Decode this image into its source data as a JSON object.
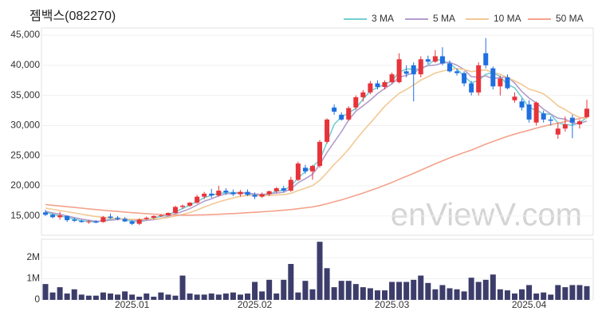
{
  "chart_data": {
    "type": "candlestick",
    "title": "젬백스(082270)",
    "watermark": "enViewV.com",
    "up_color": "#e8333a",
    "down_color": "#1f6fe0",
    "grid": true,
    "categories": [
      null,
      null,
      null,
      null,
      null,
      null,
      null,
      null,
      null,
      null,
      null,
      null,
      "2025.01",
      null,
      null,
      null,
      null,
      null,
      null,
      null,
      null,
      null,
      null,
      null,
      null,
      null,
      null,
      null,
      null,
      "2025.02",
      null,
      null,
      null,
      null,
      null,
      null,
      null,
      null,
      null,
      null,
      null,
      null,
      null,
      null,
      null,
      null,
      null,
      null,
      "2025.03",
      null,
      null,
      null,
      null,
      null,
      null,
      null,
      null,
      null,
      null,
      null,
      null,
      null,
      null,
      null,
      null,
      null,
      null,
      "2025.04",
      null,
      null,
      null,
      null,
      null,
      null,
      null,
      null
    ],
    "open": [
      15600,
      15200,
      14800,
      15000,
      14400,
      14200,
      14000,
      14100,
      14000,
      14900,
      14700,
      14500,
      14100,
      13700,
      14500,
      14700,
      15000,
      15100,
      15500,
      16500,
      16700,
      17200,
      18200,
      18700,
      18400,
      19200,
      18900,
      18600,
      19000,
      18500,
      18200,
      18600,
      19100,
      19600,
      19200,
      21000,
      23000,
      22400,
      23300,
      27300,
      33000,
      31800,
      31000,
      33000,
      34700,
      35500,
      37000,
      36400,
      37200,
      37200,
      39000,
      40000,
      38500,
      41000,
      40600,
      41500,
      40300,
      39000,
      38700,
      37000,
      35500,
      42000,
      39500,
      36500,
      38000,
      34200,
      34000,
      33500,
      30500,
      32000,
      31000,
      28500,
      29500,
      31300,
      30200,
      31400
    ],
    "high": [
      16000,
      15400,
      15700,
      15100,
      14700,
      14400,
      14300,
      14300,
      15000,
      15400,
      15000,
      14800,
      14300,
      14600,
      14900,
      15100,
      15300,
      15600,
      16700,
      16900,
      17300,
      18500,
      19000,
      19500,
      20000,
      19600,
      19400,
      19300,
      19400,
      18900,
      18900,
      19200,
      19800,
      20000,
      21500,
      24000,
      23500,
      23500,
      27600,
      31200,
      33500,
      32200,
      33200,
      35000,
      35900,
      37400,
      37500,
      37500,
      38800,
      42000,
      40000,
      40500,
      41500,
      41600,
      42500,
      43000,
      40800,
      39500,
      39000,
      37400,
      40500,
      44500,
      39800,
      38300,
      38500,
      35500,
      34500,
      34200,
      34000,
      32500,
      31500,
      30500,
      31500,
      31800,
      31000,
      34300
    ],
    "low": [
      15000,
      14600,
      14400,
      14000,
      14000,
      13900,
      13700,
      13800,
      13900,
      14500,
      14300,
      14000,
      13500,
      13500,
      14300,
      14500,
      14800,
      15000,
      15400,
      16200,
      16500,
      17000,
      17800,
      18000,
      18200,
      18500,
      18300,
      18200,
      18300,
      17800,
      18000,
      18300,
      18800,
      18900,
      19000,
      20800,
      22000,
      21000,
      23000,
      27000,
      31800,
      30800,
      30800,
      32600,
      34000,
      35200,
      36000,
      36000,
      37000,
      37000,
      38000,
      34000,
      38000,
      40200,
      40400,
      40000,
      38800,
      38300,
      36500,
      35000,
      35000,
      39500,
      36000,
      35000,
      36000,
      33800,
      32500,
      30500,
      30000,
      30500,
      30000,
      27800,
      29000,
      27900,
      29500,
      31200
    ],
    "close": [
      15200,
      14800,
      15100,
      14300,
      14200,
      14000,
      14100,
      13900,
      14800,
      14700,
      14500,
      14100,
      13700,
      14400,
      14700,
      15000,
      15100,
      15500,
      16500,
      16700,
      17200,
      18200,
      18700,
      18400,
      19200,
      18900,
      18600,
      19000,
      18500,
      18200,
      18600,
      19100,
      19600,
      19200,
      21000,
      23700,
      22400,
      23300,
      27300,
      31000,
      32300,
      31000,
      32900,
      34700,
      35500,
      37000,
      36400,
      37200,
      38500,
      41000,
      38600,
      38500,
      41000,
      40600,
      41500,
      40300,
      39000,
      38700,
      37000,
      35500,
      40000,
      40000,
      36500,
      37800,
      36200,
      34800,
      33000,
      31000,
      33800,
      31000,
      30800,
      29500,
      30200,
      30500,
      30700,
      32800
    ],
    "ylim": [
      11800,
      46200
    ],
    "yticks": [
      {
        "value": 15000,
        "label": "15,000"
      },
      {
        "value": 20000,
        "label": "20,000"
      },
      {
        "value": 25000,
        "label": "25,000"
      },
      {
        "value": 30000,
        "label": "30,000"
      },
      {
        "value": 35000,
        "label": "35,000"
      },
      {
        "value": 40000,
        "label": "40,000"
      },
      {
        "value": 45000,
        "label": "45,000"
      }
    ],
    "series": [
      {
        "name": "3 MA",
        "color": "#74cfd1",
        "values": [
          15600,
          15300,
          15033,
          14733,
          14533,
          14167,
          14100,
          14000,
          14267,
          14467,
          14667,
          14433,
          14100,
          14067,
          14267,
          14700,
          14933,
          15200,
          15700,
          16233,
          16800,
          17367,
          18033,
          18433,
          18767,
          18833,
          18900,
          18833,
          18700,
          18567,
          18433,
          18633,
          19100,
          19300,
          19933,
          21300,
          22367,
          23133,
          24333,
          27200,
          30200,
          31433,
          32067,
          32867,
          34367,
          35733,
          36300,
          36867,
          37367,
          38900,
          39367,
          39367,
          39367,
          40033,
          41033,
          40800,
          40267,
          39333,
          38233,
          37067,
          37500,
          38500,
          38833,
          38100,
          36833,
          36267,
          34667,
          32933,
          32600,
          31933,
          31867,
          30433,
          30167,
          30067,
          30467,
          31333
        ]
      },
      {
        "name": "5 MA",
        "color": "#b39dcc",
        "values": [
          15800,
          15500,
          15300,
          15000,
          14720,
          14480,
          14320,
          14100,
          14200,
          14300,
          14400,
          14560,
          14360,
          14280,
          14280,
          14380,
          14580,
          14940,
          15360,
          15760,
          16200,
          16820,
          17460,
          17840,
          18340,
          18680,
          18760,
          18820,
          18840,
          18640,
          18580,
          18680,
          18800,
          18940,
          19500,
          20520,
          21180,
          21920,
          23540,
          25540,
          27260,
          28980,
          30900,
          32380,
          33280,
          34220,
          35300,
          36160,
          36920,
          38020,
          38340,
          38740,
          39520,
          39940,
          40040,
          40380,
          40480,
          40020,
          39300,
          38100,
          38040,
          38240,
          37800,
          37960,
          38100,
          37060,
          35660,
          34560,
          33760,
          32720,
          31920,
          31220,
          31060,
          30400,
          30340,
          30740
        ]
      },
      {
        "name": "10 MA",
        "color": "#f2c994",
        "values": [
          16300,
          16100,
          15900,
          15700,
          15500,
          15300,
          15100,
          14900,
          14800,
          14630,
          14560,
          14490,
          14450,
          14460,
          14500,
          14520,
          14590,
          14750,
          15000,
          15260,
          15560,
          15990,
          16490,
          16930,
          17340,
          17680,
          17990,
          18270,
          18390,
          18410,
          18350,
          18400,
          18500,
          18530,
          18740,
          19220,
          19600,
          20030,
          20910,
          22190,
          23560,
          24750,
          26080,
          27630,
          29080,
          30410,
          31810,
          33200,
          34320,
          35350,
          35980,
          36730,
          37540,
          38110,
          38710,
          39040,
          39300,
          39450,
          39300,
          38950,
          39100,
          39240,
          38790,
          38510,
          37980,
          37410,
          36810,
          36040,
          35720,
          35260,
          34340,
          33270,
          32640,
          31910,
          31360,
          31160
        ]
      },
      {
        "name": "50 MA",
        "color": "#f4a28c",
        "values": [
          16900,
          16780,
          16660,
          16540,
          16420,
          16300,
          16180,
          16060,
          15950,
          15850,
          15750,
          15650,
          15550,
          15460,
          15380,
          15310,
          15250,
          15200,
          15160,
          15140,
          15140,
          15160,
          15190,
          15230,
          15280,
          15340,
          15400,
          15470,
          15540,
          15610,
          15690,
          15770,
          15860,
          15950,
          16060,
          16200,
          16350,
          16500,
          16730,
          17030,
          17360,
          17680,
          18030,
          18410,
          18800,
          19220,
          19650,
          20090,
          20560,
          21090,
          21580,
          22070,
          22600,
          23120,
          23650,
          24150,
          24630,
          25100,
          25530,
          25930,
          26420,
          26920,
          27340,
          27790,
          28200,
          28580,
          28920,
          29230,
          29580,
          29870,
          30150,
          30400,
          30660,
          30920,
          31170,
          31460
        ]
      }
    ],
    "volume": {
      "color": "#3d3d6b",
      "ylim": [
        0,
        2870000
      ],
      "yticks": [
        0,
        {
          "value": 1000000,
          "label": "1M"
        },
        {
          "value": 2000000,
          "label": "2M"
        }
      ],
      "values": [
        750000,
        350000,
        600000,
        300000,
        500000,
        250000,
        200000,
        200000,
        350000,
        300000,
        250000,
        400000,
        250000,
        150000,
        300000,
        150000,
        350000,
        250000,
        200000,
        1150000,
        300000,
        250000,
        250000,
        300000,
        250000,
        300000,
        350000,
        250000,
        300000,
        850000,
        400000,
        950000,
        300000,
        950000,
        1700000,
        350000,
        900000,
        500000,
        2750000,
        1500000,
        600000,
        900000,
        900000,
        750000,
        600000,
        550000,
        450000,
        450000,
        850000,
        850000,
        850000,
        950000,
        1150000,
        800000,
        500000,
        700000,
        550000,
        500000,
        400000,
        1050000,
        850000,
        950000,
        1200000,
        500000,
        450000,
        300000,
        500000,
        700000,
        300000,
        350000,
        250000,
        700000,
        600000,
        700000,
        700000,
        650000
      ]
    }
  }
}
